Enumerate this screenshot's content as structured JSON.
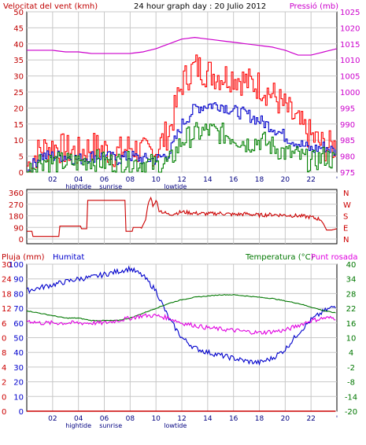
{
  "header": {
    "wind_label": "Velocitat del vent (kmh)",
    "title": "24 hour graph day : 20 Julio 2012",
    "pressure_label": "Pressió (mb)"
  },
  "lower_header": {
    "rain_label": "Pluja (mm)",
    "humidity_label": "Humitat",
    "temp_label": "Temperatura (°C)",
    "dew_label": "Punt rosada"
  },
  "colors": {
    "wind_axis": "#c00000",
    "wind_gust": "#ff0000",
    "wind_avg": "#0000cc",
    "wind_min": "#008000",
    "pressure": "#cc00cc",
    "direction": "#cc0000",
    "humidity": "#0000cc",
    "temperature": "#007700",
    "dewpoint": "#e000e0",
    "rain": "#cc0000",
    "grid": "#c8c8c8"
  },
  "x_axis": {
    "ticks": [
      "02",
      "04",
      "06",
      "08",
      "10",
      "12",
      "14",
      "16",
      "18",
      "20",
      "22",
      "'"
    ],
    "tide_labels": [
      {
        "text": "hightide",
        "hour": 4
      },
      {
        "text": "sunrise",
        "hour": 6.5
      },
      {
        "text": "lowtide",
        "hour": 11.5
      }
    ]
  },
  "chart_data": [
    {
      "type": "line",
      "name": "wind_pressure",
      "x": [
        0,
        1,
        2,
        3,
        4,
        5,
        6,
        7,
        8,
        9,
        10,
        11,
        12,
        13,
        14,
        15,
        16,
        17,
        18,
        19,
        20,
        21,
        22,
        23,
        24
      ],
      "y_left_ticks": [
        0,
        5,
        10,
        15,
        20,
        25,
        30,
        35,
        40,
        45,
        50
      ],
      "y_right_ticks": [
        975,
        980,
        985,
        990,
        995,
        1000,
        1005,
        1010,
        1015,
        1020,
        1025
      ],
      "ylim_left": [
        0,
        50
      ],
      "ylim_right": [
        975,
        1025
      ],
      "series": [
        {
          "name": "gust",
          "axis": "left",
          "values": [
            2,
            7,
            8,
            7,
            6,
            8,
            7,
            6,
            8,
            6,
            7,
            13,
            28,
            33,
            31,
            30,
            30,
            28,
            27,
            24,
            20,
            15,
            11,
            8,
            8
          ]
        },
        {
          "name": "average",
          "axis": "left",
          "values": [
            0,
            5,
            5,
            5,
            4,
            5,
            5,
            4,
            5,
            4,
            4,
            6,
            15,
            20,
            21,
            21,
            19,
            18,
            16,
            14,
            11,
            9,
            7,
            8,
            6
          ]
        },
        {
          "name": "minimum",
          "axis": "left",
          "values": [
            0,
            4,
            3,
            3,
            3,
            4,
            3,
            3,
            3,
            3,
            2,
            3,
            10,
            12,
            13,
            12,
            11,
            9,
            10,
            8,
            6,
            5,
            3,
            5,
            3
          ]
        },
        {
          "name": "pressure",
          "axis": "right",
          "values": [
            1013,
            1013,
            1013,
            1012.5,
            1012.5,
            1012,
            1012,
            1012,
            1012,
            1012.5,
            1013.5,
            1015,
            1016.5,
            1017,
            1016.5,
            1016,
            1015.5,
            1015,
            1014.5,
            1014,
            1013,
            1011.5,
            1011.5,
            1012.5,
            1013.5
          ]
        }
      ]
    },
    {
      "type": "line",
      "name": "wind_direction",
      "y_ticks": [
        0,
        90,
        180,
        270,
        360
      ],
      "y_right_labels": [
        "N",
        "W",
        "S",
        "E",
        "N"
      ],
      "ylim": [
        0,
        360
      ],
      "x": [
        0,
        0.4,
        0.41,
        2.5,
        2.51,
        4.2,
        4.21,
        4.7,
        4.71,
        7.6,
        7.61,
        8.2,
        8.21,
        8.8,
        8.81,
        9.2,
        9.4,
        9.6,
        9.8,
        10.0,
        10.2,
        10.5,
        11,
        12,
        13,
        14,
        15,
        16,
        17,
        18,
        19,
        20,
        21,
        22,
        22.8,
        23.2,
        23.6,
        24
      ],
      "values": [
        60,
        60,
        20,
        20,
        100,
        100,
        80,
        80,
        300,
        300,
        60,
        60,
        90,
        90,
        70,
        150,
        280,
        320,
        250,
        310,
        230,
        210,
        190,
        210,
        200,
        195,
        200,
        190,
        195,
        185,
        190,
        185,
        180,
        170,
        150,
        70,
        70,
        80
      ]
    },
    {
      "type": "line",
      "name": "humidity_temperature",
      "y_left_ticks": [
        100,
        90,
        80,
        70,
        60,
        50,
        40,
        30,
        20,
        10,
        0
      ],
      "rain_ticks": [
        30,
        24,
        18,
        12,
        6,
        0,
        8,
        4,
        2,
        0,
        0
      ],
      "y_right_ticks": [
        40,
        34,
        28,
        22,
        16,
        10,
        4,
        -2,
        -8,
        -14,
        -20
      ],
      "ylim_left": [
        0,
        100
      ],
      "ylim_right": [
        -20,
        40
      ],
      "x": [
        0,
        1,
        2,
        3,
        4,
        5,
        6,
        7,
        8,
        9,
        10,
        11,
        12,
        13,
        14,
        15,
        16,
        17,
        18,
        19,
        20,
        21,
        22,
        23,
        24
      ],
      "series": [
        {
          "name": "humidity",
          "axis": "left",
          "values": [
            82,
            84,
            86,
            88,
            90,
            91,
            93,
            95,
            97,
            92,
            82,
            63,
            50,
            43,
            40,
            38,
            36,
            34,
            33,
            36,
            42,
            53,
            62,
            68,
            72
          ]
        },
        {
          "name": "temperature",
          "axis": "right",
          "values": [
            21,
            20,
            19,
            18,
            18,
            17,
            17,
            17,
            18,
            20,
            22,
            24,
            25.5,
            26.5,
            27,
            27.5,
            27.5,
            27,
            26.5,
            26,
            25,
            24,
            22.5,
            21,
            20
          ]
        },
        {
          "name": "dewpoint",
          "axis": "right",
          "values": [
            17,
            16,
            16,
            16,
            16,
            16,
            16,
            17,
            18,
            19,
            19,
            18,
            16,
            15,
            14,
            13.5,
            13,
            12.5,
            12,
            12.5,
            13,
            15,
            17,
            18,
            18
          ]
        },
        {
          "name": "rain",
          "axis": "left",
          "values": [
            0,
            0,
            0,
            0,
            0,
            0,
            0,
            0,
            0,
            0,
            0,
            0,
            0,
            0,
            0,
            0,
            0,
            0,
            0,
            0,
            0,
            0,
            0,
            0,
            0
          ]
        }
      ]
    }
  ]
}
